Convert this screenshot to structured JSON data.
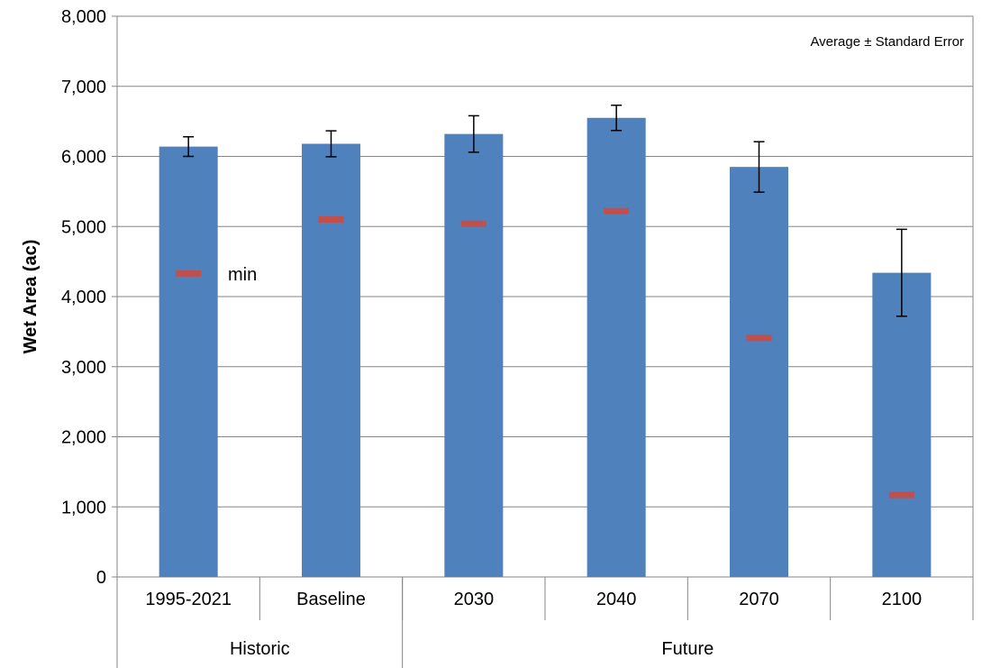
{
  "chart_data": {
    "type": "bar",
    "categories": [
      "1995-2021",
      "Baseline",
      "2030",
      "2040",
      "2070",
      "2100"
    ],
    "groups": [
      {
        "label": "Historic",
        "categories": [
          "1995-2021",
          "Baseline"
        ]
      },
      {
        "label": "Future",
        "categories": [
          "2030",
          "2040",
          "2070",
          "2100"
        ]
      }
    ],
    "series": [
      {
        "name": "",
        "values": [
          6140,
          6180,
          6320,
          6550,
          5850,
          4340
        ],
        "error": [
          140,
          185,
          260,
          180,
          360,
          620
        ]
      },
      {
        "name": "min",
        "values": [
          4330,
          5100,
          5040,
          5220,
          3410,
          1170
        ]
      }
    ],
    "ylabel": "Wet Area (ac)",
    "xlabel": "",
    "ylim": [
      0,
      8000
    ],
    "yticks": [
      "0",
      "1,000",
      "2,000",
      "3,000",
      "4,000",
      "5,000",
      "6,000",
      "7,000",
      "8,000"
    ],
    "grid": true,
    "annotation": "Average ± Standard Error",
    "colors": {
      "bar": "#4F81BD",
      "min_marker": "#C0504D",
      "grid": "#868686",
      "axis": "#868686"
    }
  }
}
